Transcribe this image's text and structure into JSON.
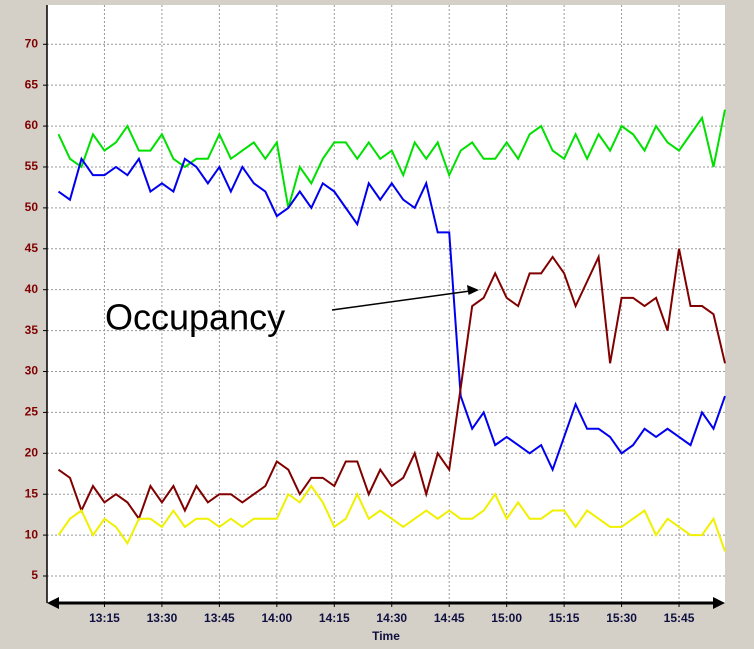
{
  "chart_data": {
    "type": "line",
    "x_label": "Time",
    "x": [
      783,
      786,
      789,
      792,
      795,
      798,
      801,
      804,
      807,
      810,
      813,
      816,
      819,
      822,
      825,
      828,
      831,
      834,
      837,
      840,
      843,
      846,
      849,
      852,
      855,
      858,
      861,
      864,
      867,
      870,
      873,
      876,
      879,
      882,
      885,
      888,
      891,
      894,
      897,
      900,
      903,
      906,
      909,
      912,
      915,
      918,
      921,
      924,
      927,
      930,
      933,
      936,
      939,
      942,
      945,
      948,
      951,
      954,
      957
    ],
    "series": [
      {
        "color": "#00e000",
        "values": [
          59,
          56,
          55,
          59,
          57,
          58,
          60,
          57,
          57,
          59,
          56,
          55,
          56,
          56,
          59,
          56,
          57,
          58,
          56,
          58,
          50,
          55,
          53,
          56,
          58,
          58,
          56,
          58,
          56,
          57,
          54,
          58,
          56,
          58,
          54,
          57,
          58,
          56,
          56,
          58,
          56,
          59,
          60,
          57,
          56,
          59,
          56,
          59,
          57,
          60,
          59,
          57,
          60,
          58,
          57,
          59,
          61,
          55,
          62
        ]
      },
      {
        "color": "#0000ee",
        "values": [
          52,
          51,
          56,
          54,
          54,
          55,
          54,
          56,
          52,
          53,
          52,
          56,
          55,
          53,
          55,
          52,
          55,
          53,
          52,
          49,
          50,
          52,
          50,
          53,
          52,
          50,
          48,
          53,
          51,
          53,
          51,
          50,
          53,
          47,
          47,
          27,
          23,
          25,
          21,
          22,
          21,
          20,
          21,
          18,
          22,
          26,
          23,
          23,
          22,
          20,
          21,
          23,
          22,
          23,
          22,
          21,
          25,
          23,
          27
        ]
      },
      {
        "color": "#800000",
        "values": [
          18,
          17,
          13,
          16,
          14,
          15,
          14,
          12,
          16,
          14,
          16,
          13,
          16,
          14,
          15,
          15,
          14,
          15,
          16,
          19,
          18,
          15,
          17,
          17,
          16,
          19,
          19,
          15,
          18,
          16,
          17,
          20,
          15,
          20,
          18,
          28,
          38,
          39,
          42,
          39,
          38,
          42,
          42,
          44,
          42,
          38,
          41,
          44,
          31,
          39,
          39,
          38,
          39,
          35,
          45,
          38,
          38,
          37,
          31
        ]
      },
      {
        "color": "#f0f000",
        "values": [
          10,
          12,
          13,
          10,
          12,
          11,
          9,
          12,
          12,
          11,
          13,
          11,
          12,
          12,
          11,
          12,
          11,
          12,
          12,
          12,
          15,
          14,
          16,
          14,
          11,
          12,
          15,
          12,
          13,
          12,
          11,
          12,
          13,
          12,
          13,
          12,
          12,
          13,
          15,
          12,
          14,
          12,
          12,
          13,
          13,
          11,
          13,
          12,
          11,
          11,
          12,
          13,
          10,
          12,
          11,
          10,
          10,
          12,
          8
        ]
      }
    ],
    "xlim": [
      780,
      957
    ],
    "xticks": [
      {
        "value": 795,
        "label": "13:15"
      },
      {
        "value": 810,
        "label": "13:30"
      },
      {
        "value": 825,
        "label": "13:45"
      },
      {
        "value": 840,
        "label": "14:00"
      },
      {
        "value": 855,
        "label": "14:15"
      },
      {
        "value": 870,
        "label": "14:30"
      },
      {
        "value": 885,
        "label": "14:45"
      },
      {
        "value": 900,
        "label": "15:00"
      },
      {
        "value": 915,
        "label": "15:15"
      },
      {
        "value": 930,
        "label": "15:30"
      },
      {
        "value": 945,
        "label": "15:45"
      }
    ],
    "ylim": [
      1.7,
      74.8
    ],
    "yticks": [
      5,
      10,
      15,
      20,
      25,
      30,
      35,
      40,
      45,
      50,
      55,
      60,
      65,
      70
    ],
    "grid": true,
    "annotations": [
      {
        "text": "Occupancy"
      }
    ]
  }
}
